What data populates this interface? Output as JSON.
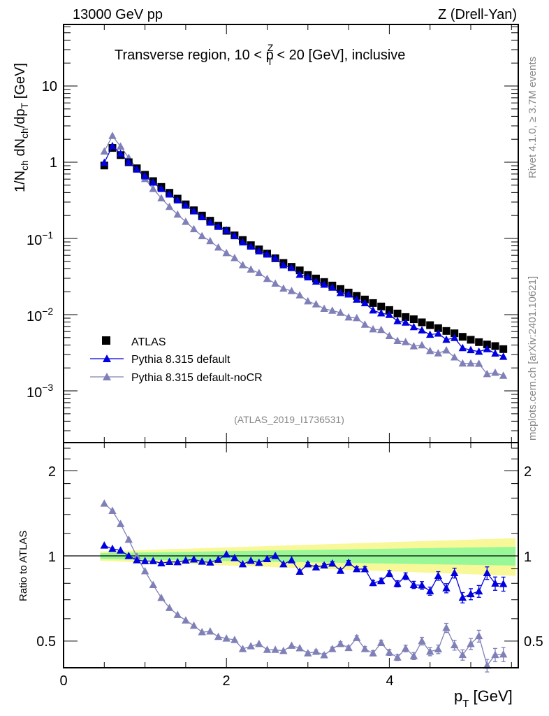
{
  "header": {
    "left": "13000 GeV pp",
    "right": "Z (Drell-Yan)"
  },
  "side_text": {
    "rivet": "Rivet 4.1.0, ≥ 3.7M events",
    "mcplots": "mcplots.cern.ch [arXiv:2401.10621]"
  },
  "chart_data": {
    "type": "scatter",
    "title": "Transverse region, 10 < p_T^Z < 20 [GeV], inclusive",
    "title_parts": {
      "pre": "Transverse region, 10 < p",
      "sub": "T",
      "sup": "Z",
      "post": " < 20 [GeV], inclusive"
    },
    "analysis_label": "(ATLAS_2019_I1736531)",
    "xlabel": {
      "main": "p",
      "sub": "T",
      "unit": " [GeV]"
    },
    "ylabel": {
      "text": "1/N_ch dN_ch/dp_T [GeV]"
    },
    "ratio_ylabel": "Ratio to ATLAS",
    "xlim": [
      0,
      5.6
    ],
    "ylim": [
      0.00021,
      64
    ],
    "yscale": "log",
    "ratio_ylim": [
      0.403,
      2.51
    ],
    "ratio_yscale": "log",
    "x_ticks": [
      "0",
      "2",
      "4"
    ],
    "y_ticks": [
      {
        "base": "10",
        "exp": ""
      },
      {
        "base": "1",
        "exp": ""
      },
      {
        "base": "10",
        "exp": "−1"
      },
      {
        "base": "10",
        "exp": "−2"
      },
      {
        "base": "10",
        "exp": "−3"
      }
    ],
    "ratio_ticks": [
      "2",
      "1",
      "0.5"
    ],
    "legend": {
      "position": "bottom-left",
      "entries": [
        "ATLAS",
        "Pythia 8.315 default",
        "Pythia 8.315 default-noCR"
      ]
    },
    "colors": {
      "atlas": "#000000",
      "default": "#0000e0",
      "nocr": "#8080b8",
      "band_stat": "#98f898",
      "band_total": "#f8f898"
    },
    "x": [
      0.5,
      0.6,
      0.7,
      0.8,
      0.9,
      1.0,
      1.1,
      1.2,
      1.3,
      1.4,
      1.5,
      1.6,
      1.7,
      1.8,
      1.9,
      2.0,
      2.1,
      2.2,
      2.3,
      2.4,
      2.5,
      2.6,
      2.7,
      2.8,
      2.9,
      3.0,
      3.1,
      3.2,
      3.3,
      3.4,
      3.5,
      3.6,
      3.7,
      3.8,
      3.9,
      4.0,
      4.1,
      4.2,
      4.3,
      4.4,
      4.5,
      4.6,
      4.7,
      4.8,
      4.9,
      5.0,
      5.1,
      5.2,
      5.3,
      5.4
    ],
    "atlas": [
      0.905,
      1.54,
      1.24,
      1.0,
      0.832,
      0.684,
      0.565,
      0.474,
      0.397,
      0.333,
      0.28,
      0.234,
      0.1995,
      0.1708,
      0.147,
      0.126,
      0.1096,
      0.0953,
      0.0815,
      0.0718,
      0.0633,
      0.055,
      0.0477,
      0.0424,
      0.0381,
      0.0331,
      0.0298,
      0.0268,
      0.0241,
      0.0217,
      0.0195,
      0.0176,
      0.0158,
      0.0142,
      0.0128,
      0.0115,
      0.01035,
      0.0093,
      0.0087,
      0.00793,
      0.00728,
      0.00665,
      0.00611,
      0.00569,
      0.00512,
      0.00468,
      0.00436,
      0.00406,
      0.00387,
      0.00353
    ],
    "ratio_default": [
      1.088,
      1.059,
      1.045,
      1.0,
      0.966,
      0.959,
      0.959,
      0.942,
      0.953,
      0.951,
      0.964,
      0.972,
      0.955,
      0.948,
      0.97,
      1.012,
      0.983,
      0.935,
      0.962,
      0.946,
      0.975,
      1.0,
      0.935,
      0.966,
      0.88,
      0.935,
      0.912,
      0.926,
      0.94,
      0.886,
      0.946,
      0.898,
      0.898,
      0.802,
      0.816,
      0.866,
      0.797,
      0.848,
      0.79,
      0.787,
      0.751,
      0.85,
      0.769,
      0.87,
      0.712,
      0.733,
      0.75,
      0.87,
      0.799,
      0.796
    ],
    "ratio_nocr": [
      1.531,
      1.443,
      1.296,
      1.141,
      0.994,
      0.883,
      0.79,
      0.711,
      0.655,
      0.619,
      0.592,
      0.567,
      0.538,
      0.541,
      0.518,
      0.511,
      0.505,
      0.469,
      0.48,
      0.489,
      0.466,
      0.466,
      0.462,
      0.482,
      0.472,
      0.453,
      0.459,
      0.446,
      0.469,
      0.489,
      0.473,
      0.513,
      0.469,
      0.453,
      0.493,
      0.456,
      0.438,
      0.471,
      0.443,
      0.5,
      0.459,
      0.468,
      0.557,
      0.484,
      0.447,
      0.489,
      0.521,
      0.41,
      0.447,
      0.449
    ],
    "ratio_err": [
      0.003,
      0.003,
      0.003,
      0.003,
      0.004,
      0.004,
      0.004,
      0.004,
      0.005,
      0.005,
      0.005,
      0.005,
      0.006,
      0.006,
      0.006,
      0.007,
      0.007,
      0.008,
      0.008,
      0.009,
      0.009,
      0.01,
      0.01,
      0.011,
      0.012,
      0.013,
      0.014,
      0.015,
      0.016,
      0.017,
      0.018,
      0.019,
      0.02,
      0.021,
      0.022,
      0.024,
      0.025,
      0.027,
      0.029,
      0.031,
      0.033,
      0.035,
      0.037,
      0.04,
      0.042,
      0.045,
      0.048,
      0.051,
      0.054,
      0.057
    ],
    "bands": {
      "x": [
        0.45,
        5.55
      ],
      "total_lo": [
        0.96,
        0.85
      ],
      "total_hi": [
        1.037,
        1.155
      ],
      "stat_lo": [
        0.975,
        0.924
      ],
      "stat_hi": [
        1.023,
        1.077
      ]
    }
  }
}
